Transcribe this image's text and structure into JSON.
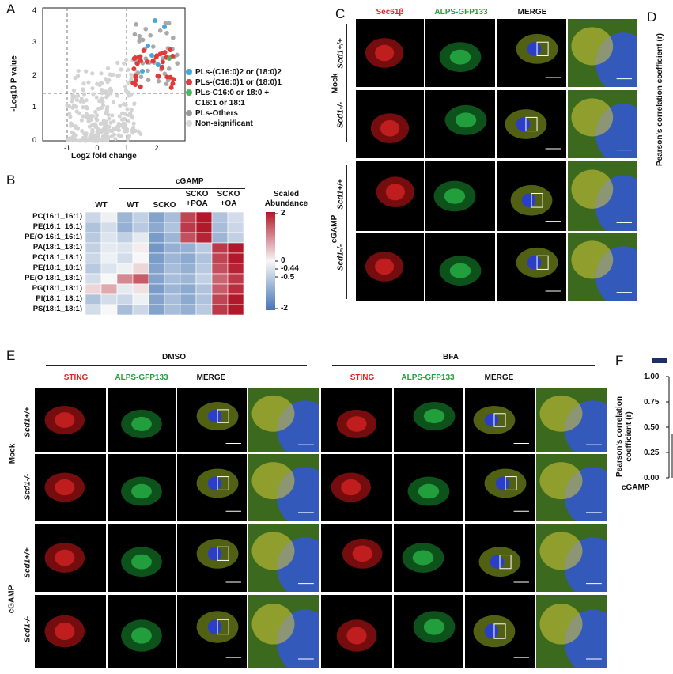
{
  "panels": {
    "A": "A",
    "B": "B",
    "C": "C",
    "D": "D",
    "E": "E",
    "F": "F"
  },
  "panelA": {
    "ylabel": "-Log10 P value",
    "xlabel": "Log2 fold change",
    "yticks": [
      "0",
      "1",
      "2",
      "3",
      "4"
    ],
    "xticks": [
      "-1",
      "0",
      "1",
      "2"
    ],
    "legend": [
      {
        "label": "PLs-(C16:0)2 or (18:0)2",
        "color": "#3fa9d8"
      },
      {
        "label": "PLs-(C16:0)1 or (18:0)1",
        "color": "#e23a3a"
      },
      {
        "label": "PLs-C16:0 or 18:0 +",
        "color": "#4cb85c"
      },
      {
        "label": "C16:1 or 18:1",
        "color": ""
      },
      {
        "label": "PLs-Others",
        "color": "#999999"
      },
      {
        "label": "Non-significant",
        "color": "#d9d9d9"
      }
    ]
  },
  "panelB": {
    "group_label": "cGAMP",
    "columns": [
      "WT",
      "WT",
      "SCKO",
      "SCKO\n+POA",
      "SCKO\n+OA"
    ],
    "rows": [
      "PC(16:1_16:1)",
      "PE(16:1_16:1)",
      "PE(O-16:1_16:1)",
      "PA(18:1_18:1)",
      "PC(18:1_18:1)",
      "PE(18:1_18:1)",
      "PE(O-18:1_18:1)",
      "PG(18:1_18:1)",
      "PI(18:1_18:1)",
      "PS(18:1_18:1)"
    ],
    "scale_title": "Scaled\nAbundance",
    "scale_ticks": [
      "2",
      "0",
      "-0.44",
      "-0.5",
      "-2"
    ]
  },
  "panelC": {
    "columns": [
      "Sec61β",
      "ALPS-GFP133",
      "MERGE"
    ],
    "genotypes": [
      "Scd1+/+",
      "Scd1-/-",
      "Scd1+/+",
      "Scd1-/-"
    ],
    "groups": [
      "Mock",
      "cGAMP"
    ]
  },
  "panelD": {
    "ylabel": "Pearson's correlation coefficient (r)"
  },
  "panelE": {
    "conditions": [
      "DMSO",
      "BFA"
    ],
    "columns": [
      "STING",
      "ALPS-GFP133",
      "MERGE"
    ],
    "genotypes": [
      "Scd1+/+",
      "Scd1-/-",
      "Scd1+/+",
      "Scd1-/-"
    ],
    "groups": [
      "Mock",
      "cGAMP"
    ]
  },
  "panelF": {
    "ylabel": "Pearson's correlation coefficient (r)",
    "yticks": [
      "1.00",
      "0.75",
      "0.50",
      "0.25",
      "0.00"
    ],
    "xlabel": "cGAMP"
  },
  "colors": {
    "red_channel": "#e02525",
    "green_channel": "#1fa33a",
    "heat_high": "#b2182b",
    "heat_low": "#4575b4"
  }
}
